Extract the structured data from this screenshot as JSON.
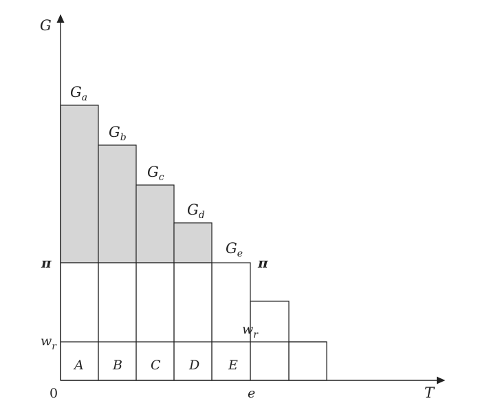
{
  "axes": {
    "y_label": "G",
    "x_label": "T",
    "origin_label": "0",
    "x_tick_label": "e",
    "y_tick_pi": "π",
    "y_tick_wr_base": "w",
    "y_tick_wr_sub": "r"
  },
  "bar_labels": [
    {
      "base": "G",
      "sub": "a"
    },
    {
      "base": "G",
      "sub": "b"
    },
    {
      "base": "G",
      "sub": "c"
    },
    {
      "base": "G",
      "sub": "d"
    },
    {
      "base": "G",
      "sub": "e"
    }
  ],
  "box_labels": [
    "A",
    "B",
    "C",
    "D",
    "E"
  ],
  "inline_pi": "π",
  "inline_wr_base": "w",
  "inline_wr_sub": "r"
}
